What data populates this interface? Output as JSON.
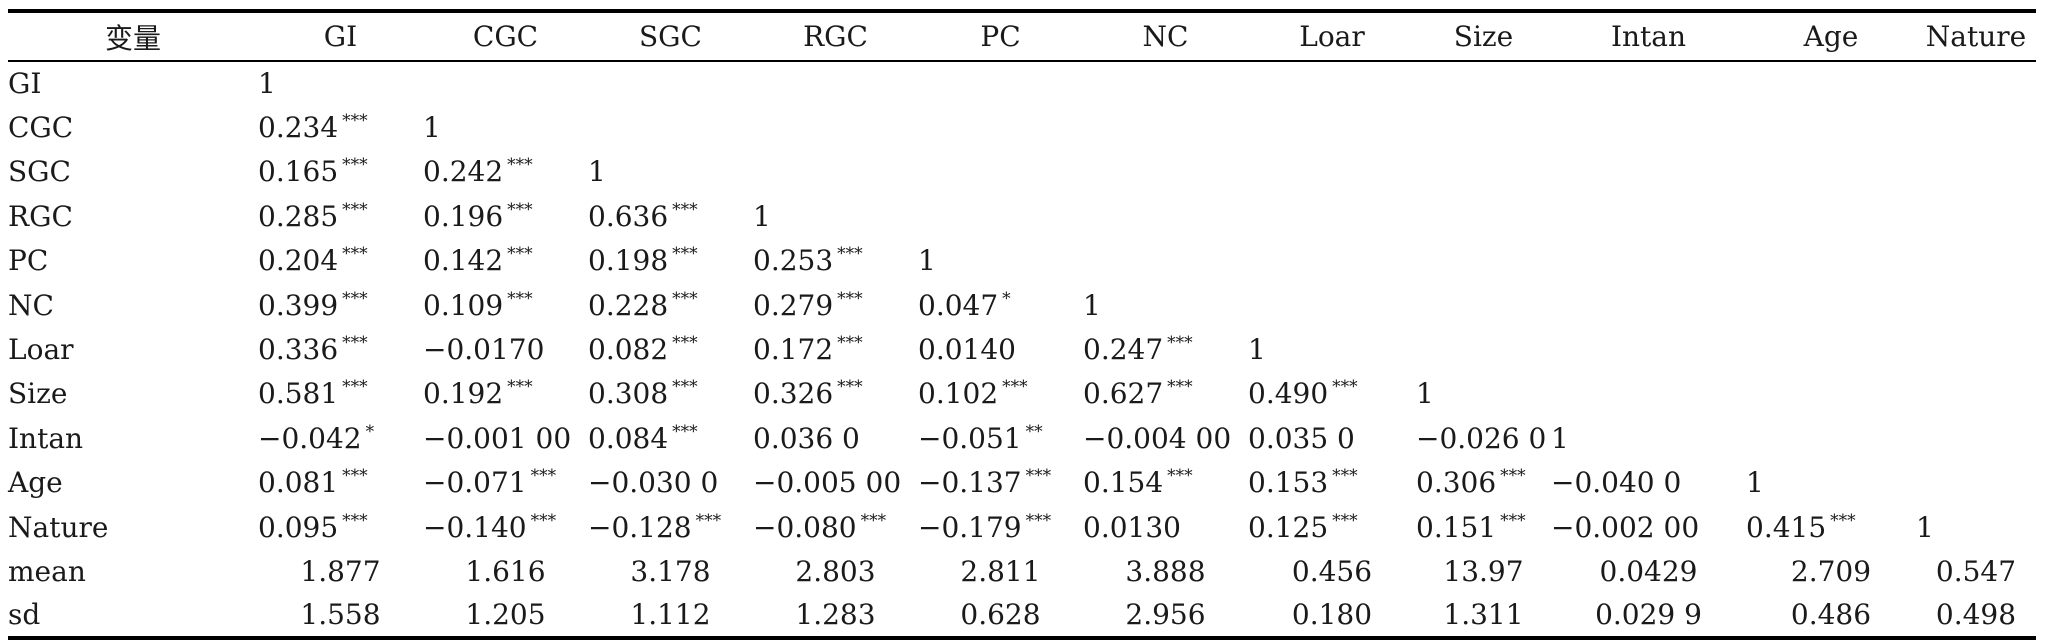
{
  "table": {
    "headers": [
      "变量",
      "GI",
      "CGC",
      "SGC",
      "RGC",
      "PC",
      "NC",
      "Loar",
      "Size",
      "Intan",
      "Age",
      "Nature"
    ],
    "rows": [
      {
        "label": "GI",
        "cells": [
          {
            "v": "1",
            "s": ""
          }
        ]
      },
      {
        "label": "CGC",
        "cells": [
          {
            "v": "0.234",
            "s": "***"
          },
          {
            "v": "1",
            "s": ""
          }
        ]
      },
      {
        "label": "SGC",
        "cells": [
          {
            "v": "0.165",
            "s": "***"
          },
          {
            "v": "0.242",
            "s": "***"
          },
          {
            "v": "1",
            "s": ""
          }
        ]
      },
      {
        "label": "RGC",
        "cells": [
          {
            "v": "0.285",
            "s": "***"
          },
          {
            "v": "0.196",
            "s": "***"
          },
          {
            "v": "0.636",
            "s": "***"
          },
          {
            "v": "1",
            "s": ""
          }
        ]
      },
      {
        "label": "PC",
        "cells": [
          {
            "v": "0.204",
            "s": "***"
          },
          {
            "v": "0.142",
            "s": "***"
          },
          {
            "v": "0.198",
            "s": "***"
          },
          {
            "v": "0.253",
            "s": "***"
          },
          {
            "v": "1",
            "s": ""
          }
        ]
      },
      {
        "label": "NC",
        "cells": [
          {
            "v": "0.399",
            "s": "***"
          },
          {
            "v": "0.109",
            "s": "***"
          },
          {
            "v": "0.228",
            "s": "***"
          },
          {
            "v": "0.279",
            "s": "***"
          },
          {
            "v": "0.047",
            "s": "*"
          },
          {
            "v": "1",
            "s": ""
          }
        ]
      },
      {
        "label": "Loar",
        "cells": [
          {
            "v": "0.336",
            "s": "***"
          },
          {
            "v": "−0.0170",
            "s": ""
          },
          {
            "v": "0.082",
            "s": "***"
          },
          {
            "v": "0.172",
            "s": "***"
          },
          {
            "v": "0.0140",
            "s": ""
          },
          {
            "v": "0.247",
            "s": "***"
          },
          {
            "v": "1",
            "s": ""
          }
        ]
      },
      {
        "label": "Size",
        "cells": [
          {
            "v": "0.581",
            "s": "***"
          },
          {
            "v": "0.192",
            "s": "***"
          },
          {
            "v": "0.308",
            "s": "***"
          },
          {
            "v": "0.326",
            "s": "***"
          },
          {
            "v": "0.102",
            "s": "***"
          },
          {
            "v": "0.627",
            "s": "***"
          },
          {
            "v": "0.490",
            "s": "***"
          },
          {
            "v": "1",
            "s": ""
          }
        ]
      },
      {
        "label": "Intan",
        "cells": [
          {
            "v": "−0.042",
            "s": "*"
          },
          {
            "v": "−0.001 00",
            "s": ""
          },
          {
            "v": "0.084",
            "s": "***"
          },
          {
            "v": "0.036 0",
            "s": ""
          },
          {
            "v": "−0.051",
            "s": "**"
          },
          {
            "v": "−0.004 00",
            "s": ""
          },
          {
            "v": "0.035 0",
            "s": ""
          },
          {
            "v": "−0.026 0",
            "s": ""
          },
          {
            "v": "1",
            "s": ""
          }
        ]
      },
      {
        "label": "Age",
        "cells": [
          {
            "v": "0.081",
            "s": "***"
          },
          {
            "v": "−0.071",
            "s": "***"
          },
          {
            "v": "−0.030 0",
            "s": ""
          },
          {
            "v": "−0.005 00",
            "s": ""
          },
          {
            "v": "−0.137",
            "s": "***"
          },
          {
            "v": "0.154",
            "s": "***"
          },
          {
            "v": "0.153",
            "s": "***"
          },
          {
            "v": "0.306",
            "s": "***"
          },
          {
            "v": "−0.040 0",
            "s": ""
          },
          {
            "v": "1",
            "s": ""
          }
        ]
      },
      {
        "label": "Nature",
        "cells": [
          {
            "v": "0.095",
            "s": "***"
          },
          {
            "v": "−0.140",
            "s": "***"
          },
          {
            "v": "−0.128",
            "s": "***"
          },
          {
            "v": "−0.080",
            "s": "***"
          },
          {
            "v": "−0.179",
            "s": "***"
          },
          {
            "v": "0.0130",
            "s": ""
          },
          {
            "v": "0.125",
            "s": "***"
          },
          {
            "v": "0.151",
            "s": "***"
          },
          {
            "v": "−0.002 00",
            "s": ""
          },
          {
            "v": "0.415",
            "s": "***"
          },
          {
            "v": "1",
            "s": ""
          }
        ]
      },
      {
        "label": "mean",
        "center": true,
        "cells": [
          {
            "v": "1.877",
            "s": ""
          },
          {
            "v": "1.616",
            "s": ""
          },
          {
            "v": "3.178",
            "s": ""
          },
          {
            "v": "2.803",
            "s": ""
          },
          {
            "v": "2.811",
            "s": ""
          },
          {
            "v": "3.888",
            "s": ""
          },
          {
            "v": "0.456",
            "s": ""
          },
          {
            "v": "13.97",
            "s": ""
          },
          {
            "v": "0.0429",
            "s": ""
          },
          {
            "v": "2.709",
            "s": ""
          },
          {
            "v": "0.547",
            "s": ""
          }
        ]
      },
      {
        "label": "sd",
        "center": true,
        "cells": [
          {
            "v": "1.558",
            "s": ""
          },
          {
            "v": "1.205",
            "s": ""
          },
          {
            "v": "1.112",
            "s": ""
          },
          {
            "v": "1.283",
            "s": ""
          },
          {
            "v": "0.628",
            "s": ""
          },
          {
            "v": "2.956",
            "s": ""
          },
          {
            "v": "0.180",
            "s": ""
          },
          {
            "v": "1.311",
            "s": ""
          },
          {
            "v": "0.029 9",
            "s": ""
          },
          {
            "v": "0.486",
            "s": ""
          },
          {
            "v": "0.498",
            "s": ""
          }
        ]
      }
    ]
  }
}
